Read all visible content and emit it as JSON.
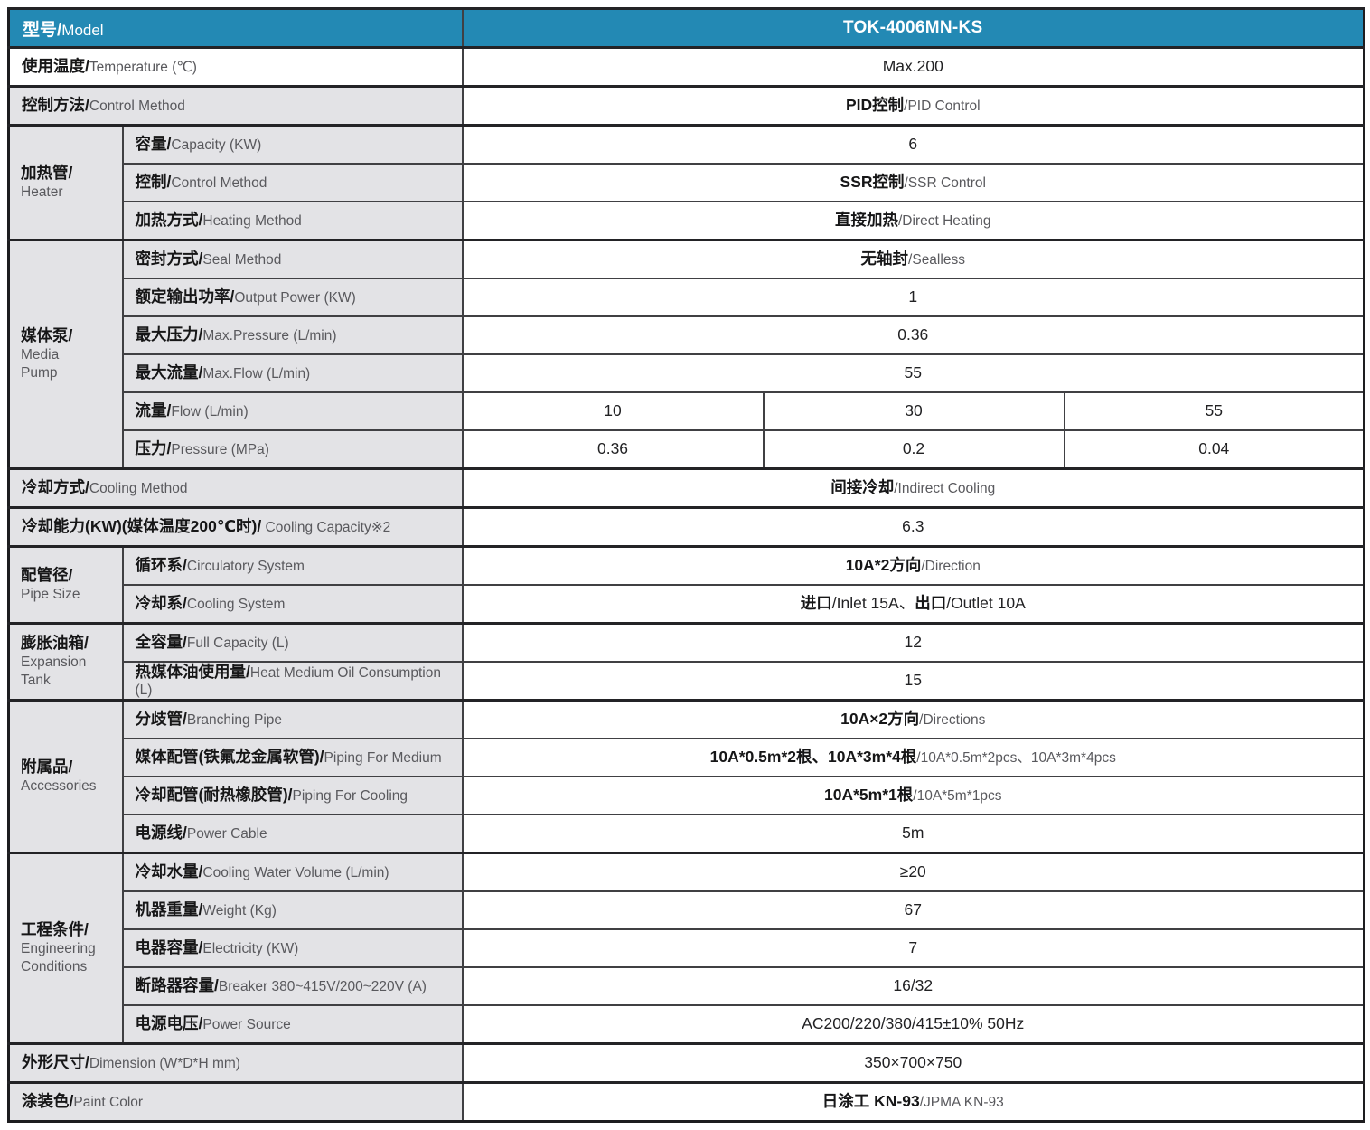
{
  "document_title": "TOK-4006MN-KS 产品规格表 / Specification Table",
  "colors": {
    "header_bg": "#2389b4",
    "header_text": "#ffffff",
    "label_bg": "#e3e3e6",
    "value_bg": "#ffffff",
    "grid_line": "#404043",
    "outer_border": "#1d1d1f",
    "cn_text": "#161617",
    "en_text": "#59595d"
  },
  "table": {
    "header": {
      "label": {
        "cn": "型号",
        "en": "Model"
      },
      "value": "TOK-4006MN-KS"
    },
    "rows": [
      {
        "id": "temperature",
        "full": true,
        "white": true,
        "sec": true,
        "label": {
          "cn": "使用温度",
          "en": "Temperature (℃)"
        },
        "value": [
          [
            "Max.200",
            "p"
          ]
        ]
      },
      {
        "id": "control-method",
        "full": true,
        "sec": true,
        "label": {
          "cn": "控制方法",
          "en": "Control Method"
        },
        "value": [
          [
            "PID控制",
            "c"
          ],
          [
            "/PID Control",
            "e"
          ]
        ]
      },
      {
        "id": "heater-capacity",
        "sec": true,
        "group": {
          "id": "heater",
          "cn": "加热管",
          "en": "Heater",
          "span": 3
        },
        "label": {
          "cn": "容量",
          "en": "Capacity (KW)"
        },
        "value": [
          [
            "6",
            "p"
          ]
        ]
      },
      {
        "id": "heater-control",
        "label": {
          "cn": "控制",
          "en": "Control Method"
        },
        "value": [
          [
            "SSR控制",
            "c"
          ],
          [
            "/SSR Control",
            "e"
          ]
        ]
      },
      {
        "id": "heater-heating-method",
        "label": {
          "cn": "加热方式",
          "en": "Heating Method"
        },
        "value": [
          [
            "直接加热",
            "c"
          ],
          [
            "/Direct Heating",
            "e"
          ]
        ]
      },
      {
        "id": "pump-seal-method",
        "sec": true,
        "group": {
          "id": "media-pump",
          "cn": "媒体泵",
          "en": "Media\nPump",
          "span": 6
        },
        "label": {
          "cn": "密封方式",
          "en": "Seal Method"
        },
        "value": [
          [
            "无轴封",
            "c"
          ],
          [
            "/Sealless",
            "e"
          ]
        ]
      },
      {
        "id": "pump-output-power",
        "label": {
          "cn": "额定输出功率",
          "en": "Output Power (KW)"
        },
        "value": [
          [
            "1",
            "p"
          ]
        ]
      },
      {
        "id": "pump-max-pressure",
        "label": {
          "cn": "最大压力",
          "en": "Max.Pressure (L/min)"
        },
        "value": [
          [
            "0.36",
            "p"
          ]
        ]
      },
      {
        "id": "pump-max-flow",
        "label": {
          "cn": "最大流量",
          "en": "Max.Flow (L/min)"
        },
        "value": [
          [
            "55",
            "p"
          ]
        ]
      },
      {
        "id": "pump-flow",
        "label": {
          "cn": "流量",
          "en": "Flow (L/min)"
        },
        "cols": [
          "10",
          "30",
          "55"
        ]
      },
      {
        "id": "pump-pressure",
        "label": {
          "cn": "压力",
          "en": "Pressure (MPa)"
        },
        "cols": [
          "0.36",
          "0.2",
          "0.04"
        ]
      },
      {
        "id": "cooling-method",
        "full": true,
        "sec": true,
        "label": {
          "cn": "冷却方式",
          "en": "Cooling Method"
        },
        "value": [
          [
            "间接冷却",
            "c"
          ],
          [
            "/Indirect Cooling",
            "e"
          ]
        ]
      },
      {
        "id": "cooling-capacity",
        "full": true,
        "sec": true,
        "label": {
          "cn": "冷却能力(KW)(媒体温度200℃时)",
          "en": " Cooling Capacity※2"
        },
        "value": [
          [
            "6.3",
            "p"
          ]
        ]
      },
      {
        "id": "pipe-circulatory",
        "sec": true,
        "group": {
          "id": "pipe-size",
          "cn": "配管径",
          "en": "Pipe Size",
          "span": 2
        },
        "label": {
          "cn": "循环系",
          "en": "Circulatory System"
        },
        "value": [
          [
            "10A*2方向",
            "c"
          ],
          [
            "/Direction",
            "e"
          ]
        ]
      },
      {
        "id": "pipe-cooling",
        "label": {
          "cn": "冷却系",
          "en": "Cooling System"
        },
        "value": [
          [
            "进口",
            "c"
          ],
          [
            "/Inlet 15A、",
            "p"
          ],
          [
            "出口",
            "c"
          ],
          [
            "/Outlet 10A",
            "p"
          ]
        ]
      },
      {
        "id": "tank-full-capacity",
        "sec": true,
        "group": {
          "id": "expansion-tank",
          "cn": "膨胀油箱",
          "en": "Expansion\nTank",
          "span": 2
        },
        "label": {
          "cn": "全容量",
          "en": "Full Capacity (L)"
        },
        "value": [
          [
            "12",
            "p"
          ]
        ]
      },
      {
        "id": "tank-oil-consumption",
        "label": {
          "cn": "热媒体油使用量",
          "en": "Heat Medium Oil Consumption (L)"
        },
        "value": [
          [
            "15",
            "p"
          ]
        ]
      },
      {
        "id": "acc-branching-pipe",
        "sec": true,
        "group": {
          "id": "accessories",
          "cn": "附属品",
          "en": "Accessories",
          "span": 4
        },
        "label": {
          "cn": "分歧管",
          "en": "Branching Pipe"
        },
        "value": [
          [
            "10A×2方向",
            "c"
          ],
          [
            "/Directions",
            "e"
          ]
        ]
      },
      {
        "id": "acc-piping-medium",
        "label": {
          "cn": "媒体配管(铁氟龙金属软管)",
          "en": "Piping For Medium"
        },
        "value": [
          [
            "10A*0.5m*2根、10A*3m*4根",
            "c"
          ],
          [
            "/10A*0.5m*2pcs、10A*3m*4pcs",
            "e"
          ]
        ]
      },
      {
        "id": "acc-piping-cooling",
        "label": {
          "cn": "冷却配管(耐热橡胶管)",
          "en": "Piping For Cooling"
        },
        "value": [
          [
            "10A*5m*1根",
            "c"
          ],
          [
            "/10A*5m*1pcs",
            "e"
          ]
        ]
      },
      {
        "id": "acc-power-cable",
        "label": {
          "cn": "电源线",
          "en": "Power Cable"
        },
        "value": [
          [
            "5m",
            "p"
          ]
        ]
      },
      {
        "id": "eng-cooling-water",
        "sec": true,
        "group": {
          "id": "engineering-conditions",
          "cn": "工程条件",
          "en": "Engineering\nConditions",
          "span": 5
        },
        "label": {
          "cn": "冷却水量",
          "en": "Cooling Water Volume (L/min)"
        },
        "value": [
          [
            "≥20",
            "p"
          ]
        ]
      },
      {
        "id": "eng-weight",
        "label": {
          "cn": "机器重量",
          "en": "Weight (Kg)"
        },
        "value": [
          [
            "67",
            "p"
          ]
        ]
      },
      {
        "id": "eng-electricity",
        "label": {
          "cn": "电器容量",
          "en": "Electricity (KW)"
        },
        "value": [
          [
            "7",
            "p"
          ]
        ]
      },
      {
        "id": "eng-breaker",
        "label": {
          "cn": "断路器容量",
          "en": "Breaker 380~415V/200~220V (A)"
        },
        "value": [
          [
            "16/32",
            "p"
          ]
        ]
      },
      {
        "id": "eng-power-source",
        "label": {
          "cn": "电源电压",
          "en": "Power Source"
        },
        "value": [
          [
            "AC200/220/380/415±10% 50Hz",
            "p"
          ]
        ]
      },
      {
        "id": "dimension",
        "full": true,
        "sec": true,
        "label": {
          "cn": "外形尺寸",
          "en": "Dimension (W*D*H mm)"
        },
        "value": [
          [
            "350×700×750",
            "p"
          ]
        ]
      },
      {
        "id": "paint-color",
        "full": true,
        "sec": true,
        "label": {
          "cn": "涂装色",
          "en": "Paint Color"
        },
        "value": [
          [
            "日涂工 KN-93",
            "c"
          ],
          [
            "/JPMA KN-93",
            "e"
          ]
        ]
      }
    ]
  }
}
